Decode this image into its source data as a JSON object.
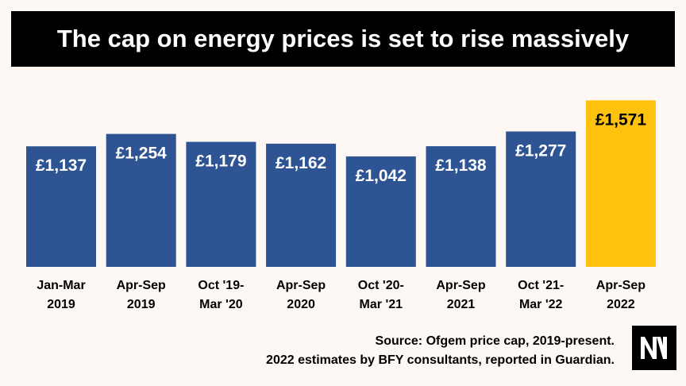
{
  "title": "The cap on energy prices is set to rise massively",
  "colors": {
    "bar": "#2e5494",
    "highlight": "#ffc20e",
    "bar_text": "#ffffff",
    "highlight_text": "#000000",
    "banner": "#000000",
    "background": "#fdf8f3"
  },
  "chart_data": {
    "type": "bar",
    "title": "The cap on energy prices is set to rise massively",
    "xlabel": "",
    "ylabel": "",
    "grid": false,
    "legend": "none",
    "highlight_index": 7,
    "categories": [
      [
        "Jan-Mar",
        "2019"
      ],
      [
        "Apr-Sep",
        "2019"
      ],
      [
        "Oct '19-",
        "Mar '20"
      ],
      [
        "Apr-Sep",
        "2020"
      ],
      [
        "Oct '20-",
        "Mar '21"
      ],
      [
        "Apr-Sep",
        "2021"
      ],
      [
        "Oct '21-",
        "Mar '22"
      ],
      [
        "Apr-Sep",
        "2022"
      ]
    ],
    "values": [
      1137,
      1254,
      1179,
      1162,
      1042,
      1138,
      1277,
      1571
    ],
    "labels": [
      "£1,137",
      "£1,254",
      "£1,179",
      "£1,162",
      "£1,042",
      "£1,138",
      "£1,277",
      "£1,571"
    ]
  },
  "source": {
    "line1": "Source: Ofgem price cap, 2019-present.",
    "line2": "2022 estimates by BFY consultants, reported in Guardian."
  },
  "logo": {
    "icon": "nm-logo-icon"
  }
}
